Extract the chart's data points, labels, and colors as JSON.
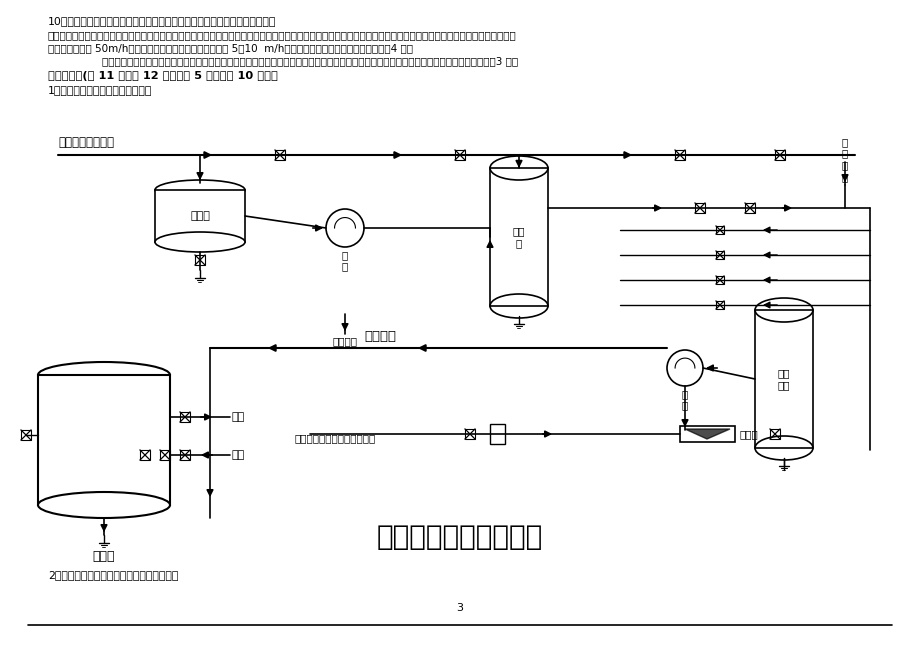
{
  "background_color": "#ffffff",
  "page_width": 9.2,
  "page_height": 6.51,
  "text_color": "#000000",
  "q10_label": "10．为什么浮床比其它固定床运行流速高？为什么阳床运行流速要比阴床高？",
  "answer_line1": "答：浮床制水时，由于水接触的树脂粒度是先粗后细，因此由截污作用而造成的阻力上升缓慢，又由于出水处树脂粒径较小，有利于彻底交换，因此浮床比其它固定床运行",
  "answer_line2": "流速高，即可达 50m/h。但为防止树脂乱层，流速不应小于 5～10  m/h，这将视树脂粒径、密度大小而定。（4 分）",
  "answer_line3": "        由于阳树脂的湿真密度一般比阴树脂的大，要使其在运行时浮起来，就要用较大的运行流速来克服重力作用，因此阳床运行流速要比阴床高。（3 分）",
  "section2_label": "二、画图题(第 11 题～第 12 题。每题 5 分，满分 10 分。）",
  "q1_label": "1．请画出阴浮床再生系统流程图。",
  "q2_label": "2．请画出逆流再生固定床制水系统流程图。",
  "diagram_title": "阴浮床再生系统流程图",
  "page_number": "3",
  "label_top": "碱罐车来工业烧碱",
  "label_收碱罐": "收碱罐",
  "label_碱泵": "碱\n泵",
  "label_碱贮罐": "碱贮\n罐",
  "label_低压蒸汽top": "低\n压\n蒸\n汽",
  "label_低压蒸汽bottom": "低压蒸汽",
  "label_碱再生液": "碱再生液",
  "label_碱泵2": "碱\n泵",
  "label_碱计量罐": "碱计\n量罐",
  "label_底部": "阴床出口总管来碱再生稀释液",
  "label_喷射器": "喷射器",
  "label_出水": "出水",
  "label_进水": "进水",
  "label_阴浮床": "阴浮床"
}
